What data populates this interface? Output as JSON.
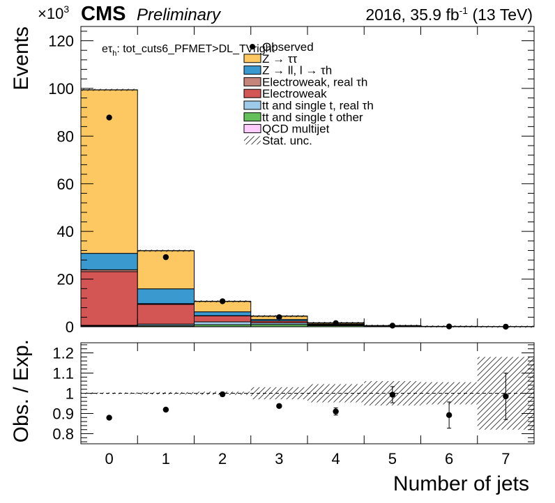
{
  "header": {
    "exp_multiplier": "×10",
    "exp_power": "3",
    "experiment": "CMS",
    "status": "Preliminary",
    "lumi_prefix": "2016, 35.9 fb",
    "lumi_power": "-1",
    "lumi_suffix": " (13 TeV)"
  },
  "channel": {
    "prefix": "eτ",
    "sub": "h",
    "suffix": ": tot_cuts6_PFMET>DL_TVright"
  },
  "chart_data": [
    {
      "type": "bar",
      "stacked": true,
      "title": "",
      "xlabel": "Number of jets",
      "ylabel": "Events",
      "y_scale_factor": 1000,
      "categories": [
        "0",
        "1",
        "2",
        "3",
        "4",
        "5",
        "6",
        "7"
      ],
      "xlim": [
        -0.5,
        7.5
      ],
      "ylim": [
        0,
        126
      ],
      "yticks": [
        0,
        20,
        40,
        60,
        80,
        100,
        120
      ],
      "xticks": [
        0,
        1,
        2,
        3,
        4,
        5,
        6,
        7
      ],
      "series": [
        {
          "name": "QCD multijet",
          "color": "#ffccff",
          "values": [
            0.15,
            0.1,
            0.05,
            0.03,
            0.01,
            0,
            0,
            0
          ]
        },
        {
          "name": "tt and single t other",
          "color": "#64c05a",
          "values": [
            0.2,
            0.4,
            0.8,
            0.9,
            0.45,
            0.12,
            0.03,
            0.01
          ]
        },
        {
          "name": "tt and single t, real τh",
          "color": "#9ecae9",
          "values": [
            0.25,
            0.6,
            1.2,
            0.7,
            0.25,
            0.06,
            0.02,
            0.005
          ]
        },
        {
          "name": "Electroweak",
          "color": "#d35655",
          "values": [
            22.5,
            8.3,
            2.5,
            0.8,
            0.25,
            0.07,
            0.02,
            0.005
          ]
        },
        {
          "name": "Electroweak, real τh",
          "color": "#c6857b",
          "values": [
            0.8,
            0.3,
            0.1,
            0.03,
            0.01,
            0,
            0,
            0
          ]
        },
        {
          "name": "Z → ll, l → τh",
          "color": "#3a99cf",
          "values": [
            6.9,
            6.2,
            1.6,
            0.6,
            0.2,
            0.06,
            0.02,
            0.005
          ]
        },
        {
          "name": "Z → ττ",
          "color": "#fdc862",
          "values": [
            68.6,
            16.0,
            4.4,
            1.4,
            0.45,
            0.14,
            0.04,
            0.01
          ]
        }
      ],
      "observed": {
        "name": "Observed",
        "values": [
          87.8,
          29.2,
          10.7,
          4.0,
          1.5,
          0.45,
          0.12,
          0.03
        ]
      },
      "legend": {
        "position": "top-center",
        "entries": [
          "Observed",
          "Z → ττ",
          "Z → ll, l → τh",
          "Electroweak, real τh",
          "Electroweak",
          "tt and single t, real τh",
          "tt and single t other",
          "QCD multijet",
          "Stat. unc."
        ]
      },
      "uncertainty_label": "Stat. unc."
    },
    {
      "type": "scatter",
      "title": "",
      "xlabel": "Number of jets",
      "ylabel": "Obs. / Exp.",
      "xlim": [
        -0.5,
        7.5
      ],
      "ylim": [
        0.75,
        1.25
      ],
      "yticks": [
        0.8,
        0.9,
        1.0,
        1.1,
        1.2
      ],
      "ytick_labels": [
        "0.8",
        "0.9",
        "1",
        "1.1",
        "1.2"
      ],
      "x": [
        0,
        1,
        2,
        3,
        4,
        5,
        6,
        7
      ],
      "values": [
        0.879,
        0.919,
        0.995,
        0.937,
        0.91,
        0.993,
        0.892,
        0.985
      ],
      "errors": [
        0.004,
        0.006,
        0.01,
        0.006,
        0.018,
        0.04,
        0.065,
        0.115
      ],
      "unc_band": [
        0.004,
        0.006,
        0.008,
        0.03,
        0.045,
        0.06,
        0.055,
        0.18
      ],
      "reference_line": 1.0
    }
  ]
}
